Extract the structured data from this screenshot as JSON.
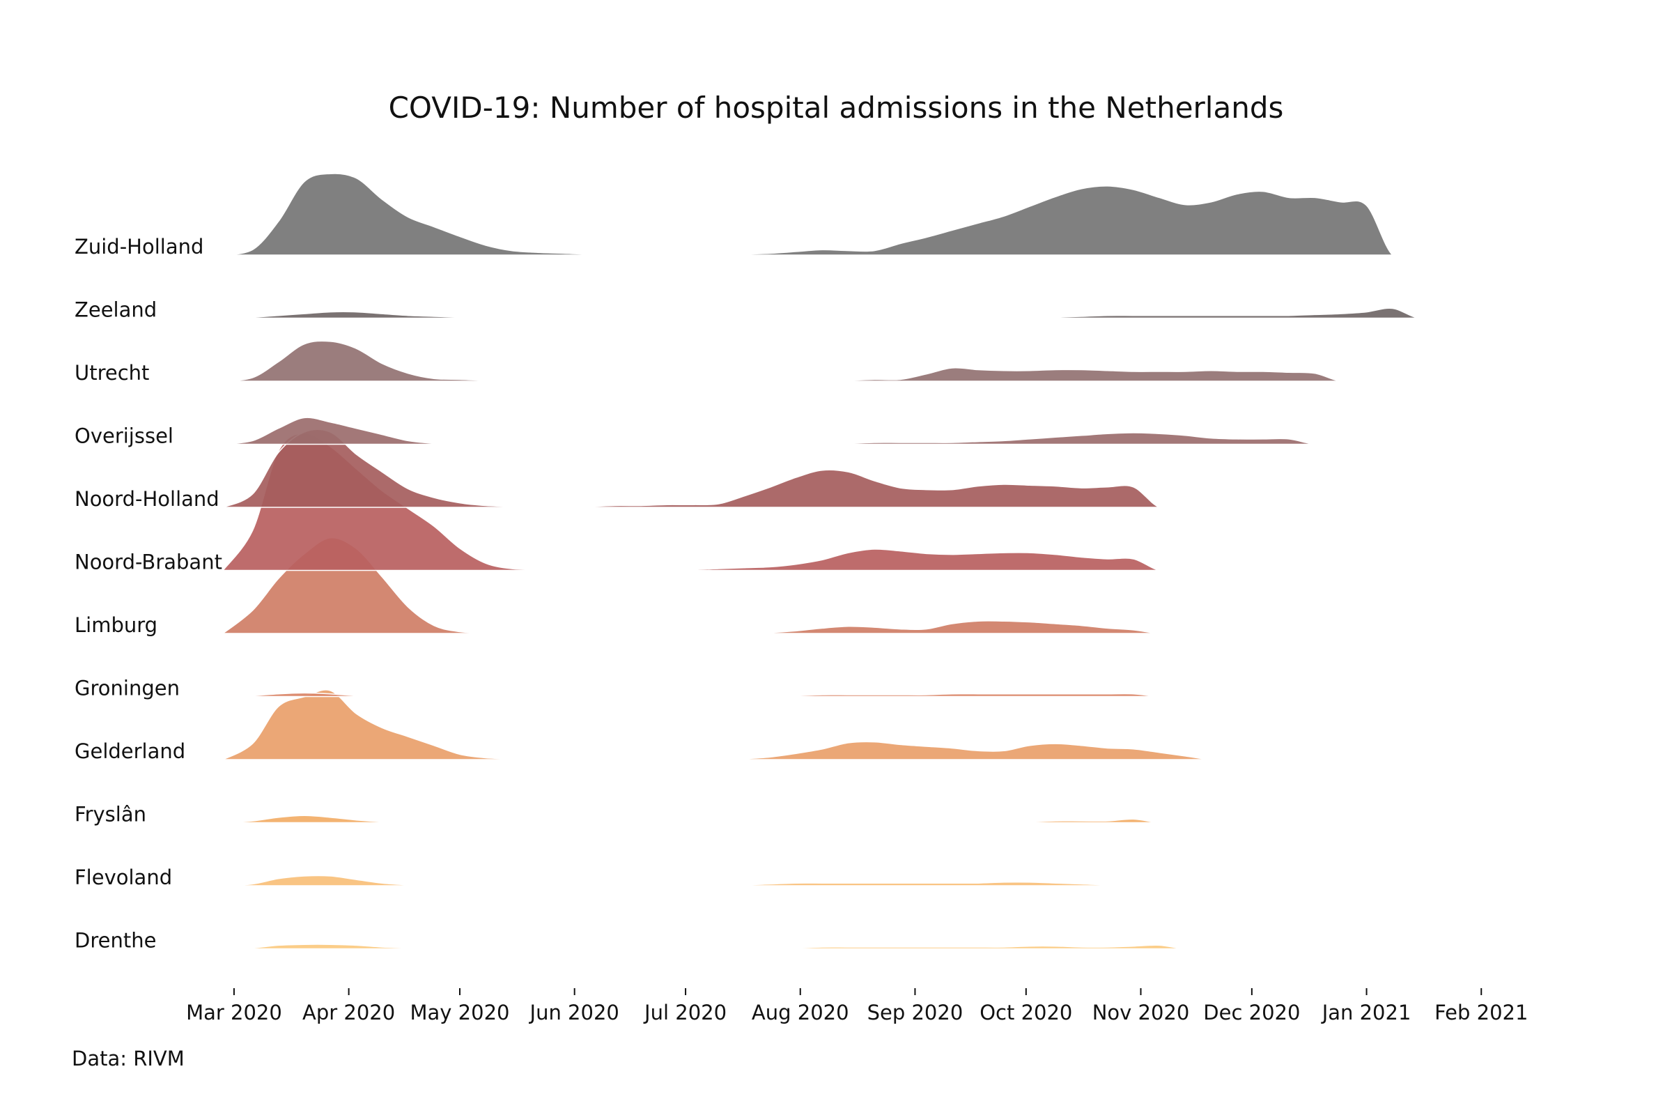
{
  "chart_data": {
    "type": "area",
    "title": "COVID-19: Number of hospital admissions in the Netherlands",
    "source": "Data: RIVM",
    "x_ticks": [
      "Mar 2020",
      "Apr 2020",
      "May 2020",
      "Jun 2020",
      "Jul 2020",
      "Aug 2020",
      "Sep 2020",
      "Oct 2020",
      "Nov 2020",
      "Dec 2020",
      "Jan 2021",
      "Feb 2021"
    ],
    "xlim": [
      "2020-02-27",
      "2021-02-13"
    ],
    "x": [
      "2020-02-27",
      "2020-03-06",
      "2020-03-13",
      "2020-03-20",
      "2020-03-27",
      "2020-04-03",
      "2020-04-10",
      "2020-04-17",
      "2020-04-24",
      "2020-05-01",
      "2020-05-08",
      "2020-05-15",
      "2020-05-22",
      "2020-05-29",
      "2020-06-05",
      "2020-06-12",
      "2020-06-19",
      "2020-06-26",
      "2020-07-03",
      "2020-07-10",
      "2020-07-17",
      "2020-07-24",
      "2020-07-31",
      "2020-08-07",
      "2020-08-14",
      "2020-08-21",
      "2020-08-28",
      "2020-09-04",
      "2020-09-11",
      "2020-09-18",
      "2020-09-25",
      "2020-10-02",
      "2020-10-09",
      "2020-10-16",
      "2020-10-23",
      "2020-10-30",
      "2020-11-06",
      "2020-11-13",
      "2020-11-20",
      "2020-11-27",
      "2020-12-04",
      "2020-12-11",
      "2020-12-18",
      "2020-12-25",
      "2021-01-01",
      "2021-01-08",
      "2021-01-15",
      "2021-01-22",
      "2021-01-29",
      "2021-02-05",
      "2021-02-13"
    ],
    "series": [
      {
        "name": "Zuid-Holland",
        "color": "#757575",
        "values": [
          0,
          6,
          38,
          83,
          92,
          87,
          63,
          43,
          32,
          21,
          11,
          5,
          3,
          2,
          1,
          1,
          0,
          0,
          0,
          0,
          1,
          2,
          4,
          6,
          5,
          5,
          13,
          20,
          28,
          36,
          44,
          55,
          66,
          75,
          78,
          74,
          65,
          57,
          60,
          69,
          72,
          65,
          65,
          60,
          56,
          0,
          0,
          0,
          0,
          0,
          0
        ]
      },
      {
        "name": "Zeeland",
        "color": "#6f6666",
        "values": [
          0,
          1,
          3,
          5,
          7,
          7,
          5,
          3,
          2,
          1,
          0,
          0,
          0,
          0,
          0,
          0,
          0,
          0,
          0,
          0,
          0,
          0,
          0,
          0,
          0,
          0,
          0,
          0,
          0,
          0,
          0,
          0,
          1,
          2,
          3,
          3,
          3,
          3,
          3,
          3,
          3,
          3,
          4,
          5,
          7,
          11,
          0,
          0,
          0,
          0,
          0
        ]
      },
      {
        "name": "Utrecht",
        "color": "#927272",
        "values": [
          0,
          4,
          22,
          42,
          45,
          37,
          20,
          9,
          3,
          2,
          1,
          1,
          1,
          1,
          0,
          0,
          0,
          0,
          0,
          0,
          0,
          0,
          0,
          1,
          1,
          2,
          2,
          8,
          15,
          13,
          12,
          12,
          13,
          13,
          12,
          11,
          11,
          11,
          12,
          11,
          11,
          10,
          9,
          0,
          0,
          0,
          0,
          0,
          0,
          0,
          0
        ]
      },
      {
        "name": "Overijssel",
        "color": "#9b6c6c",
        "values": [
          0,
          4,
          18,
          30,
          25,
          18,
          11,
          4,
          1,
          0,
          0,
          0,
          0,
          0,
          0,
          0,
          0,
          0,
          0,
          0,
          0,
          0,
          0,
          1,
          1,
          2,
          2,
          2,
          2,
          3,
          4,
          6,
          8,
          10,
          12,
          13,
          12,
          10,
          7,
          6,
          6,
          6,
          0,
          0,
          0,
          0,
          0,
          0,
          0,
          0,
          0
        ]
      },
      {
        "name": "Noord-Holland",
        "color": "#a55d5d",
        "values": [
          0,
          15,
          62,
          85,
          85,
          60,
          40,
          21,
          11,
          5,
          2,
          1,
          1,
          1,
          1,
          2,
          2,
          3,
          3,
          4,
          13,
          23,
          34,
          42,
          40,
          30,
          22,
          20,
          20,
          24,
          26,
          25,
          24,
          22,
          23,
          23,
          0,
          0,
          0,
          0,
          0,
          0,
          0,
          0,
          0,
          0,
          0,
          0,
          0,
          0,
          0
        ]
      },
      {
        "name": "Noord-Brabant",
        "color": "#b95f5f",
        "values": [
          0,
          45,
          135,
          155,
          140,
          115,
          90,
          70,
          50,
          25,
          8,
          2,
          1,
          1,
          1,
          1,
          1,
          1,
          1,
          2,
          3,
          4,
          7,
          12,
          20,
          24,
          22,
          19,
          18,
          19,
          20,
          20,
          18,
          15,
          13,
          13,
          0,
          0,
          0,
          0,
          0,
          0,
          0,
          0,
          0,
          0,
          0,
          0,
          0,
          0,
          0
        ]
      },
      {
        "name": "Limburg",
        "color": "#cf7e66",
        "values": [
          0,
          26,
          62,
          90,
          108,
          96,
          64,
          30,
          9,
          2,
          1,
          1,
          0,
          0,
          0,
          0,
          0,
          0,
          0,
          0,
          0,
          1,
          3,
          6,
          8,
          7,
          5,
          5,
          11,
          14,
          14,
          13,
          11,
          9,
          6,
          4,
          0,
          0,
          0,
          0,
          0,
          0,
          0,
          0,
          0,
          0,
          0,
          0,
          0,
          0,
          0
        ]
      },
      {
        "name": "Groningen",
        "color": "#d98264",
        "values": [
          0,
          1,
          3,
          4,
          3,
          1,
          0,
          0,
          0,
          0,
          0,
          0,
          0,
          0,
          0,
          0,
          0,
          0,
          0,
          0,
          0,
          0,
          1,
          2,
          2,
          2,
          2,
          2,
          3,
          3,
          3,
          3,
          3,
          3,
          3,
          3,
          0,
          0,
          0,
          0,
          0,
          0,
          0,
          0,
          0,
          0,
          0,
          0,
          0,
          0,
          0
        ]
      },
      {
        "name": "Gelderland",
        "color": "#e9a06a",
        "values": [
          0,
          18,
          60,
          71,
          78,
          52,
          36,
          26,
          16,
          6,
          2,
          1,
          1,
          0,
          0,
          0,
          0,
          0,
          0,
          0,
          1,
          3,
          7,
          12,
          19,
          20,
          17,
          15,
          13,
          10,
          10,
          16,
          18,
          16,
          13,
          12,
          8,
          4,
          0,
          0,
          0,
          0,
          0,
          0,
          0,
          0,
          0,
          0,
          0,
          0,
          0
        ]
      },
      {
        "name": "Fryslân",
        "color": "#f2ad66",
        "values": [
          0,
          2,
          6,
          8,
          6,
          3,
          1,
          0,
          0,
          0,
          0,
          0,
          0,
          0,
          0,
          0,
          0,
          0,
          0,
          0,
          0,
          0,
          1,
          1,
          1,
          1,
          1,
          1,
          1,
          1,
          1,
          1,
          2,
          2,
          2,
          4,
          0,
          0,
          0,
          0,
          0,
          0,
          0,
          0,
          0,
          0,
          0,
          0,
          0,
          0,
          0
        ]
      },
      {
        "name": "Flevoland",
        "color": "#f9bf78",
        "values": [
          0,
          2,
          8,
          11,
          11,
          7,
          3,
          1,
          0,
          0,
          0,
          0,
          0,
          0,
          0,
          0,
          0,
          0,
          0,
          1,
          1,
          2,
          3,
          3,
          3,
          3,
          3,
          3,
          3,
          3,
          4,
          4,
          3,
          2,
          1,
          1,
          0,
          0,
          0,
          0,
          0,
          0,
          0,
          0,
          0,
          0,
          0,
          0,
          0,
          0,
          0
        ]
      },
      {
        "name": "Drenthe",
        "color": "#fbc97e",
        "values": [
          0,
          1,
          4,
          5,
          5,
          4,
          2,
          1,
          0,
          0,
          0,
          0,
          0,
          0,
          0,
          0,
          0,
          0,
          0,
          0,
          0,
          1,
          1,
          2,
          2,
          2,
          2,
          2,
          2,
          2,
          2,
          3,
          3,
          2,
          2,
          3,
          4,
          0,
          0,
          0,
          0,
          0,
          0,
          0,
          0,
          0,
          0,
          0,
          0,
          0,
          0
        ]
      }
    ]
  }
}
